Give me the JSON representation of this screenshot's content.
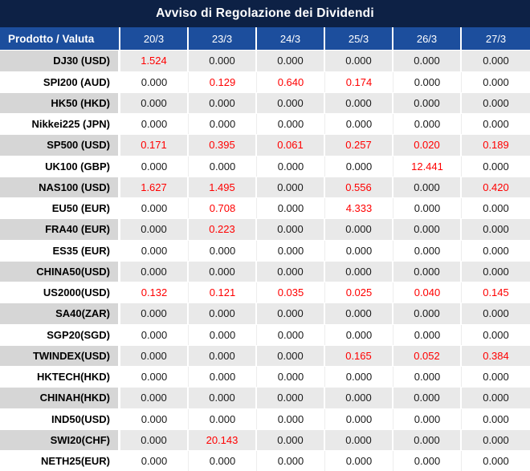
{
  "title": "Avviso di Regolazione dei Dividendi",
  "table": {
    "product_header": "Prodotto / Valuta",
    "date_headers": [
      "20/3",
      "23/3",
      "24/3",
      "25/3",
      "26/3",
      "27/3"
    ],
    "zero_value": "0.000",
    "rows": [
      {
        "product": "DJ30 (USD)",
        "values": [
          "1.524",
          "0.000",
          "0.000",
          "0.000",
          "0.000",
          "0.000"
        ]
      },
      {
        "product": "SPI200 (AUD)",
        "values": [
          "0.000",
          "0.129",
          "0.640",
          "0.174",
          "0.000",
          "0.000"
        ]
      },
      {
        "product": "HK50 (HKD)",
        "values": [
          "0.000",
          "0.000",
          "0.000",
          "0.000",
          "0.000",
          "0.000"
        ]
      },
      {
        "product": "Nikkei225 (JPN)",
        "values": [
          "0.000",
          "0.000",
          "0.000",
          "0.000",
          "0.000",
          "0.000"
        ]
      },
      {
        "product": "SP500 (USD)",
        "values": [
          "0.171",
          "0.395",
          "0.061",
          "0.257",
          "0.020",
          "0.189"
        ]
      },
      {
        "product": "UK100 (GBP)",
        "values": [
          "0.000",
          "0.000",
          "0.000",
          "0.000",
          "12.441",
          "0.000"
        ]
      },
      {
        "product": "NAS100 (USD)",
        "values": [
          "1.627",
          "1.495",
          "0.000",
          "0.556",
          "0.000",
          "0.420"
        ]
      },
      {
        "product": "EU50 (EUR)",
        "values": [
          "0.000",
          "0.708",
          "0.000",
          "4.333",
          "0.000",
          "0.000"
        ]
      },
      {
        "product": "FRA40 (EUR)",
        "values": [
          "0.000",
          "0.223",
          "0.000",
          "0.000",
          "0.000",
          "0.000"
        ]
      },
      {
        "product": "ES35 (EUR)",
        "values": [
          "0.000",
          "0.000",
          "0.000",
          "0.000",
          "0.000",
          "0.000"
        ]
      },
      {
        "product": "CHINA50(USD)",
        "values": [
          "0.000",
          "0.000",
          "0.000",
          "0.000",
          "0.000",
          "0.000"
        ]
      },
      {
        "product": "US2000(USD)",
        "values": [
          "0.132",
          "0.121",
          "0.035",
          "0.025",
          "0.040",
          "0.145"
        ]
      },
      {
        "product": "SA40(ZAR)",
        "values": [
          "0.000",
          "0.000",
          "0.000",
          "0.000",
          "0.000",
          "0.000"
        ]
      },
      {
        "product": "SGP20(SGD)",
        "values": [
          "0.000",
          "0.000",
          "0.000",
          "0.000",
          "0.000",
          "0.000"
        ]
      },
      {
        "product": "TWINDEX(USD)",
        "values": [
          "0.000",
          "0.000",
          "0.000",
          "0.165",
          "0.052",
          "0.384"
        ]
      },
      {
        "product": "HKTECH(HKD)",
        "values": [
          "0.000",
          "0.000",
          "0.000",
          "0.000",
          "0.000",
          "0.000"
        ]
      },
      {
        "product": "CHINAH(HKD)",
        "values": [
          "0.000",
          "0.000",
          "0.000",
          "0.000",
          "0.000",
          "0.000"
        ]
      },
      {
        "product": "IND50(USD)",
        "values": [
          "0.000",
          "0.000",
          "0.000",
          "0.000",
          "0.000",
          "0.000"
        ]
      },
      {
        "product": "SWI20(CHF)",
        "values": [
          "0.000",
          "20.143",
          "0.000",
          "0.000",
          "0.000",
          "0.000"
        ]
      },
      {
        "product": "NETH25(EUR)",
        "values": [
          "0.000",
          "0.000",
          "0.000",
          "0.000",
          "0.000",
          "0.000"
        ]
      }
    ]
  },
  "colors": {
    "title_bg": "#0d2145",
    "header_bg": "#1c4e9d",
    "header_text": "#ffffff",
    "row_shaded_product_bg": "#d6d6d6",
    "row_shaded_value_bg": "#e9e9e9",
    "row_plain_bg": "#ffffff",
    "value_text": "#1a1a1a",
    "nonzero_value_text": "#ff0000"
  }
}
